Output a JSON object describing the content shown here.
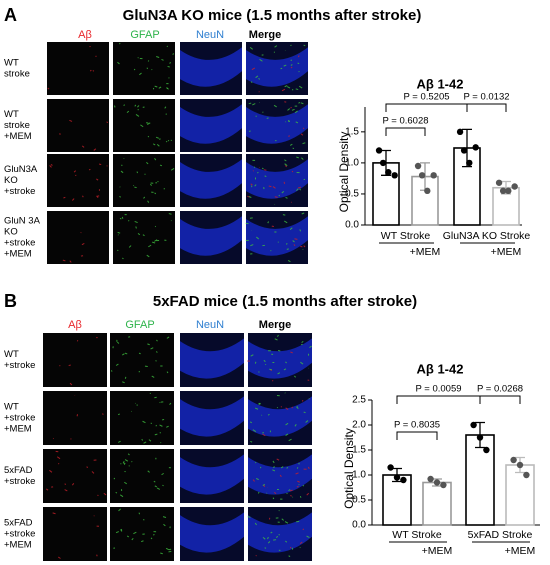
{
  "panels": [
    {
      "label": "A",
      "title": "GluN3A KO mice (1.5 months after stroke)",
      "columns": [
        "Aβ",
        "GFAP",
        "NeuN",
        "Merge"
      ],
      "rows": [
        [
          "WT",
          "stroke"
        ],
        [
          "WT",
          "stroke",
          "+MEM"
        ],
        [
          "GluN3A",
          "KO",
          "+stroke"
        ],
        [
          "GluN 3A",
          "KO",
          "+stroke",
          "+MEM"
        ]
      ]
    },
    {
      "label": "B",
      "title": "5xFAD mice (1.5 months after stroke)",
      "columns": [
        "Aβ",
        "GFAP",
        "NeuN",
        "Merge"
      ],
      "rows": [
        [
          "WT",
          "+stroke"
        ],
        [
          "WT",
          "+stroke",
          "+MEM"
        ],
        [
          "5xFAD",
          "+stroke"
        ],
        [
          "5xFAD",
          "+stroke",
          "+MEM"
        ]
      ]
    }
  ],
  "chart_data": [
    {
      "type": "bar",
      "title": "Aβ 1-42",
      "ylabel": "Optical Density",
      "groups": [
        "WT Stroke",
        "GluN3A KO Stroke"
      ],
      "categories": [
        null,
        "+MEM",
        null,
        "+MEM"
      ],
      "values": [
        1.0,
        0.78,
        1.24,
        0.6
      ],
      "errors": [
        0.2,
        0.22,
        0.3,
        0.1
      ],
      "points": [
        [
          1.2,
          1.0,
          0.85,
          0.8
        ],
        [
          0.95,
          0.8,
          0.55,
          0.8
        ],
        [
          1.5,
          1.2,
          1.0,
          1.25
        ],
        [
          0.68,
          0.55,
          0.55,
          0.62
        ]
      ],
      "colors": [
        "#000000",
        "#999999",
        "#000000",
        "#bbbbbb"
      ],
      "pvalues": [
        "P = 0.6028",
        "P = 0.5205",
        "P = 0.0132"
      ],
      "ylim": [
        0,
        1.9
      ],
      "yticks": [
        {
          "value": 0,
          "label": "0.0"
        },
        0.5,
        {
          "value": 1,
          "label": "1.0"
        },
        1.5
      ]
    },
    {
      "type": "bar",
      "title": "Aβ 1-42",
      "ylabel": "Optical Density",
      "groups": [
        "WT Stroke",
        "5xFAD Stroke"
      ],
      "categories": [
        null,
        "+MEM",
        null,
        "+MEM"
      ],
      "values": [
        1.0,
        0.85,
        1.8,
        1.2
      ],
      "errors": [
        0.13,
        0.07,
        0.25,
        0.15
      ],
      "points": [
        [
          1.15,
          0.95,
          0.9
        ],
        [
          0.92,
          0.85,
          0.8
        ],
        [
          2.0,
          1.75,
          1.5
        ],
        [
          1.3,
          1.2,
          1.0
        ]
      ],
      "colors": [
        "#000000",
        "#999999",
        "#000000",
        "#bbbbbb"
      ],
      "pvalues": [
        "P = 0.8035",
        "P = 0.0059",
        "P = 0.0268"
      ],
      "ylim": [
        0,
        2.5
      ],
      "yticks": [
        {
          "value": 0,
          "label": "0.0"
        },
        0.5,
        {
          "value": 1,
          "label": "1.0"
        },
        1.5,
        {
          "value": 2,
          "label": "2.0"
        },
        2.5
      ]
    }
  ]
}
